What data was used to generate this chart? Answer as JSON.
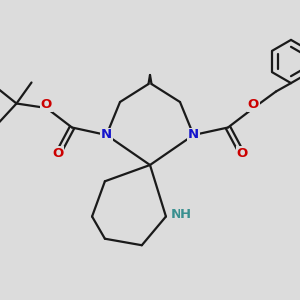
{
  "background_color": "#dcdcdc",
  "bond_color": "#1a1a1a",
  "N_color": "#1414cc",
  "O_color": "#cc0000",
  "NH_color": "#3a9090",
  "line_width": 1.6,
  "figsize": [
    3.0,
    3.0
  ],
  "dpi": 100,
  "xlim": [
    0,
    10
  ],
  "ylim": [
    0,
    10
  ]
}
